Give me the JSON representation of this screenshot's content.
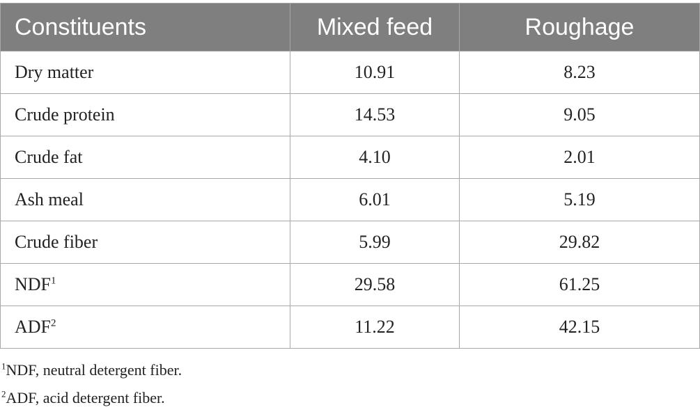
{
  "table": {
    "headers": [
      "Constituents",
      "Mixed feed",
      "Roughage"
    ],
    "rows": [
      {
        "name": "Dry matter",
        "sup": "",
        "mixed_feed": "10.91",
        "roughage": "8.23"
      },
      {
        "name": "Crude protein",
        "sup": "",
        "mixed_feed": "14.53",
        "roughage": "9.05"
      },
      {
        "name": "Crude fat",
        "sup": "",
        "mixed_feed": "4.10",
        "roughage": "2.01"
      },
      {
        "name": "Ash meal",
        "sup": "",
        "mixed_feed": "6.01",
        "roughage": "5.19"
      },
      {
        "name": "Crude fiber",
        "sup": "",
        "mixed_feed": "5.99",
        "roughage": "29.82"
      },
      {
        "name": "NDF",
        "sup": "1",
        "mixed_feed": "29.58",
        "roughage": "61.25"
      },
      {
        "name": "ADF",
        "sup": "2",
        "mixed_feed": "11.22",
        "roughage": "42.15"
      }
    ],
    "header_bg_color": "#7f7f7f"
  },
  "footnotes": [
    {
      "marker": "1",
      "text": "NDF, neutral detergent fiber."
    },
    {
      "marker": "2",
      "text": "ADF, acid detergent fiber."
    }
  ]
}
